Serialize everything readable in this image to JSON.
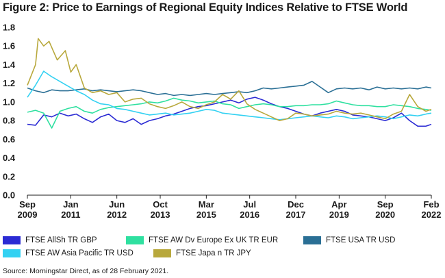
{
  "title": "Figure 2: Price to Earnings of Regional Equity Indices Relative to FTSE World",
  "source": "Source: Morningstar Direct, as of 28 February 2021.",
  "chart_data": {
    "type": "line",
    "ylim": [
      0,
      1.8
    ],
    "yticks": [
      "0.0",
      "0.2",
      "0.4",
      "0.6",
      "0.8",
      "1.0",
      "1.2",
      "1.4",
      "1.6",
      "1.8"
    ],
    "xlim": [
      "2009-09",
      "2022-02"
    ],
    "xticks": [
      {
        "month": "Sep",
        "year": "2009",
        "pos": "2009-09"
      },
      {
        "month": "Jan",
        "year": "2011",
        "pos": "2011-01"
      },
      {
        "month": "Jun",
        "year": "2012",
        "pos": "2012-06"
      },
      {
        "month": "Oct",
        "year": "2013",
        "pos": "2013-10"
      },
      {
        "month": "Mar",
        "year": "2015",
        "pos": "2015-03"
      },
      {
        "month": "Jul",
        "year": "2016",
        "pos": "2016-07"
      },
      {
        "month": "Dec",
        "year": "2017",
        "pos": "2017-12"
      },
      {
        "month": "Apr",
        "year": "2019",
        "pos": "2019-04"
      },
      {
        "month": "Sep",
        "year": "2020",
        "pos": "2020-09"
      },
      {
        "month": "Feb",
        "year": "2022",
        "pos": "2022-02"
      }
    ],
    "grid": false,
    "legend_position": "bottom",
    "series": [
      {
        "name": "FTSE AllSh TR GBP",
        "color": "#2b2bd4",
        "points": [
          [
            "2009-09",
            0.76
          ],
          [
            "2009-12",
            0.75
          ],
          [
            "2010-03",
            0.86
          ],
          [
            "2010-06",
            0.84
          ],
          [
            "2010-09",
            0.88
          ],
          [
            "2010-12",
            0.85
          ],
          [
            "2011-03",
            0.87
          ],
          [
            "2011-06",
            0.82
          ],
          [
            "2011-09",
            0.78
          ],
          [
            "2011-12",
            0.84
          ],
          [
            "2012-03",
            0.87
          ],
          [
            "2012-06",
            0.8
          ],
          [
            "2012-09",
            0.78
          ],
          [
            "2012-12",
            0.82
          ],
          [
            "2013-03",
            0.76
          ],
          [
            "2013-06",
            0.8
          ],
          [
            "2013-09",
            0.82
          ],
          [
            "2013-12",
            0.85
          ],
          [
            "2014-03",
            0.87
          ],
          [
            "2014-06",
            0.9
          ],
          [
            "2014-09",
            0.93
          ],
          [
            "2014-12",
            0.95
          ],
          [
            "2015-03",
            0.96
          ],
          [
            "2015-06",
            0.98
          ],
          [
            "2015-09",
            1.0
          ],
          [
            "2015-12",
            1.02
          ],
          [
            "2016-03",
            0.99
          ],
          [
            "2016-06",
            1.03
          ],
          [
            "2016-09",
            1.05
          ],
          [
            "2016-12",
            1.02
          ],
          [
            "2017-03",
            0.98
          ],
          [
            "2017-06",
            0.95
          ],
          [
            "2017-09",
            0.93
          ],
          [
            "2017-12",
            0.9
          ],
          [
            "2018-03",
            0.87
          ],
          [
            "2018-06",
            0.85
          ],
          [
            "2018-09",
            0.88
          ],
          [
            "2018-12",
            0.9
          ],
          [
            "2019-03",
            0.92
          ],
          [
            "2019-06",
            0.9
          ],
          [
            "2019-09",
            0.86
          ],
          [
            "2019-12",
            0.85
          ],
          [
            "2020-03",
            0.84
          ],
          [
            "2020-06",
            0.82
          ],
          [
            "2020-09",
            0.8
          ],
          [
            "2020-12",
            0.83
          ],
          [
            "2021-03",
            0.88
          ],
          [
            "2021-06",
            0.8
          ],
          [
            "2021-09",
            0.74
          ],
          [
            "2021-12",
            0.74
          ],
          [
            "2022-02",
            0.76
          ]
        ]
      },
      {
        "name": "FTSE AW Dv Europe Ex UK TR EUR",
        "color": "#2fe0a0",
        "points": [
          [
            "2009-09",
            0.89
          ],
          [
            "2009-12",
            0.91
          ],
          [
            "2010-03",
            0.88
          ],
          [
            "2010-06",
            0.72
          ],
          [
            "2010-09",
            0.9
          ],
          [
            "2010-12",
            0.93
          ],
          [
            "2011-03",
            0.95
          ],
          [
            "2011-06",
            0.9
          ],
          [
            "2011-09",
            0.88
          ],
          [
            "2011-12",
            0.92
          ],
          [
            "2012-03",
            0.94
          ],
          [
            "2012-06",
            0.95
          ],
          [
            "2012-09",
            0.96
          ],
          [
            "2012-12",
            0.97
          ],
          [
            "2013-03",
            0.98
          ],
          [
            "2013-06",
            1.0
          ],
          [
            "2013-09",
            0.99
          ],
          [
            "2013-12",
            1.01
          ],
          [
            "2014-03",
            1.04
          ],
          [
            "2014-06",
            1.02
          ],
          [
            "2014-09",
            1.01
          ],
          [
            "2014-12",
            0.99
          ],
          [
            "2015-03",
            1.0
          ],
          [
            "2015-06",
            1.01
          ],
          [
            "2015-09",
            0.98
          ],
          [
            "2015-12",
            0.97
          ],
          [
            "2016-03",
            0.93
          ],
          [
            "2016-06",
            0.95
          ],
          [
            "2016-09",
            0.97
          ],
          [
            "2016-12",
            0.98
          ],
          [
            "2017-03",
            0.97
          ],
          [
            "2017-06",
            0.95
          ],
          [
            "2017-09",
            0.95
          ],
          [
            "2017-12",
            0.96
          ],
          [
            "2018-03",
            0.96
          ],
          [
            "2018-06",
            0.97
          ],
          [
            "2018-09",
            0.97
          ],
          [
            "2018-12",
            0.98
          ],
          [
            "2019-03",
            1.01
          ],
          [
            "2019-06",
            0.99
          ],
          [
            "2019-09",
            0.97
          ],
          [
            "2019-12",
            0.96
          ],
          [
            "2020-03",
            0.96
          ],
          [
            "2020-06",
            0.95
          ],
          [
            "2020-09",
            0.95
          ],
          [
            "2020-12",
            0.97
          ],
          [
            "2021-03",
            0.96
          ],
          [
            "2021-06",
            0.95
          ],
          [
            "2021-09",
            0.93
          ],
          [
            "2021-12",
            0.92
          ],
          [
            "2022-02",
            0.91
          ]
        ]
      },
      {
        "name": "FTSE USA TR USD",
        "color": "#2a6f95",
        "points": [
          [
            "2009-09",
            1.15
          ],
          [
            "2009-12",
            1.12
          ],
          [
            "2010-03",
            1.1
          ],
          [
            "2010-06",
            1.13
          ],
          [
            "2010-09",
            1.12
          ],
          [
            "2010-12",
            1.12
          ],
          [
            "2011-03",
            1.13
          ],
          [
            "2011-06",
            1.14
          ],
          [
            "2011-09",
            1.12
          ],
          [
            "2011-12",
            1.13
          ],
          [
            "2012-03",
            1.12
          ],
          [
            "2012-06",
            1.11
          ],
          [
            "2012-09",
            1.12
          ],
          [
            "2012-12",
            1.13
          ],
          [
            "2013-03",
            1.12
          ],
          [
            "2013-06",
            1.1
          ],
          [
            "2013-09",
            1.08
          ],
          [
            "2013-12",
            1.09
          ],
          [
            "2014-03",
            1.07
          ],
          [
            "2014-06",
            1.08
          ],
          [
            "2014-09",
            1.07
          ],
          [
            "2014-12",
            1.08
          ],
          [
            "2015-03",
            1.09
          ],
          [
            "2015-06",
            1.08
          ],
          [
            "2015-09",
            1.09
          ],
          [
            "2015-12",
            1.1
          ],
          [
            "2016-03",
            1.11
          ],
          [
            "2016-06",
            1.1
          ],
          [
            "2016-09",
            1.12
          ],
          [
            "2016-12",
            1.15
          ],
          [
            "2017-03",
            1.14
          ],
          [
            "2017-06",
            1.15
          ],
          [
            "2017-09",
            1.16
          ],
          [
            "2017-12",
            1.17
          ],
          [
            "2018-03",
            1.18
          ],
          [
            "2018-06",
            1.22
          ],
          [
            "2018-09",
            1.16
          ],
          [
            "2018-12",
            1.1
          ],
          [
            "2019-03",
            1.14
          ],
          [
            "2019-06",
            1.15
          ],
          [
            "2019-09",
            1.14
          ],
          [
            "2019-12",
            1.15
          ],
          [
            "2020-03",
            1.13
          ],
          [
            "2020-06",
            1.16
          ],
          [
            "2020-09",
            1.14
          ],
          [
            "2020-12",
            1.15
          ],
          [
            "2021-03",
            1.14
          ],
          [
            "2021-06",
            1.15
          ],
          [
            "2021-09",
            1.14
          ],
          [
            "2021-12",
            1.16
          ],
          [
            "2022-02",
            1.15
          ]
        ]
      },
      {
        "name": "FTSE AW Asia Pacific TR USD",
        "color": "#33d1f2",
        "points": [
          [
            "2009-09",
            1.05
          ],
          [
            "2009-12",
            1.18
          ],
          [
            "2010-03",
            1.33
          ],
          [
            "2010-06",
            1.27
          ],
          [
            "2010-09",
            1.22
          ],
          [
            "2010-12",
            1.17
          ],
          [
            "2011-03",
            1.12
          ],
          [
            "2011-06",
            1.08
          ],
          [
            "2011-09",
            1.02
          ],
          [
            "2011-12",
            0.98
          ],
          [
            "2012-03",
            0.97
          ],
          [
            "2012-06",
            0.93
          ],
          [
            "2012-09",
            0.92
          ],
          [
            "2012-12",
            0.9
          ],
          [
            "2013-03",
            0.88
          ],
          [
            "2013-06",
            0.86
          ],
          [
            "2013-09",
            0.87
          ],
          [
            "2013-12",
            0.88
          ],
          [
            "2014-03",
            0.86
          ],
          [
            "2014-06",
            0.87
          ],
          [
            "2014-09",
            0.88
          ],
          [
            "2014-12",
            0.9
          ],
          [
            "2015-03",
            0.92
          ],
          [
            "2015-06",
            0.91
          ],
          [
            "2015-09",
            0.88
          ],
          [
            "2015-12",
            0.87
          ],
          [
            "2016-03",
            0.86
          ],
          [
            "2016-06",
            0.85
          ],
          [
            "2016-09",
            0.84
          ],
          [
            "2016-12",
            0.83
          ],
          [
            "2017-03",
            0.82
          ],
          [
            "2017-06",
            0.81
          ],
          [
            "2017-09",
            0.82
          ],
          [
            "2017-12",
            0.83
          ],
          [
            "2018-03",
            0.84
          ],
          [
            "2018-06",
            0.85
          ],
          [
            "2018-09",
            0.84
          ],
          [
            "2018-12",
            0.83
          ],
          [
            "2019-03",
            0.85
          ],
          [
            "2019-06",
            0.84
          ],
          [
            "2019-09",
            0.82
          ],
          [
            "2019-12",
            0.83
          ],
          [
            "2020-03",
            0.84
          ],
          [
            "2020-06",
            0.85
          ],
          [
            "2020-09",
            0.84
          ],
          [
            "2020-12",
            0.82
          ],
          [
            "2021-03",
            0.84
          ],
          [
            "2021-06",
            0.86
          ],
          [
            "2021-09",
            0.85
          ],
          [
            "2021-12",
            0.87
          ],
          [
            "2022-02",
            0.88
          ]
        ]
      },
      {
        "name": "FTSE Japa n TR JPY",
        "color": "#b8a83c",
        "points": [
          [
            "2009-09",
            1.18
          ],
          [
            "2009-12",
            1.4
          ],
          [
            "2010-01",
            1.68
          ],
          [
            "2010-03",
            1.6
          ],
          [
            "2010-05",
            1.65
          ],
          [
            "2010-08",
            1.45
          ],
          [
            "2010-11",
            1.55
          ],
          [
            "2011-01",
            1.32
          ],
          [
            "2011-03",
            1.4
          ],
          [
            "2011-06",
            1.15
          ],
          [
            "2011-09",
            1.1
          ],
          [
            "2011-12",
            1.12
          ],
          [
            "2012-03",
            1.08
          ],
          [
            "2012-06",
            1.1
          ],
          [
            "2012-09",
            1.0
          ],
          [
            "2012-12",
            1.03
          ],
          [
            "2013-03",
            1.04
          ],
          [
            "2013-06",
            0.98
          ],
          [
            "2013-09",
            0.95
          ],
          [
            "2013-12",
            0.93
          ],
          [
            "2014-03",
            0.96
          ],
          [
            "2014-06",
            1.0
          ],
          [
            "2014-09",
            0.95
          ],
          [
            "2014-12",
            0.93
          ],
          [
            "2015-03",
            0.97
          ],
          [
            "2015-06",
            1.0
          ],
          [
            "2015-09",
            1.08
          ],
          [
            "2015-12",
            1.03
          ],
          [
            "2016-03",
            1.12
          ],
          [
            "2016-06",
            0.98
          ],
          [
            "2016-09",
            0.92
          ],
          [
            "2016-12",
            0.88
          ],
          [
            "2017-03",
            0.84
          ],
          [
            "2017-06",
            0.8
          ],
          [
            "2017-09",
            0.82
          ],
          [
            "2017-12",
            0.88
          ],
          [
            "2018-03",
            0.87
          ],
          [
            "2018-06",
            0.85
          ],
          [
            "2018-09",
            0.86
          ],
          [
            "2018-12",
            0.87
          ],
          [
            "2019-03",
            0.9
          ],
          [
            "2019-06",
            0.88
          ],
          [
            "2019-09",
            0.87
          ],
          [
            "2019-12",
            0.88
          ],
          [
            "2020-03",
            0.86
          ],
          [
            "2020-06",
            0.84
          ],
          [
            "2020-09",
            0.82
          ],
          [
            "2020-12",
            0.87
          ],
          [
            "2021-03",
            0.9
          ],
          [
            "2021-06",
            1.08
          ],
          [
            "2021-09",
            0.95
          ],
          [
            "2021-12",
            0.9
          ],
          [
            "2022-02",
            0.92
          ]
        ]
      }
    ]
  }
}
